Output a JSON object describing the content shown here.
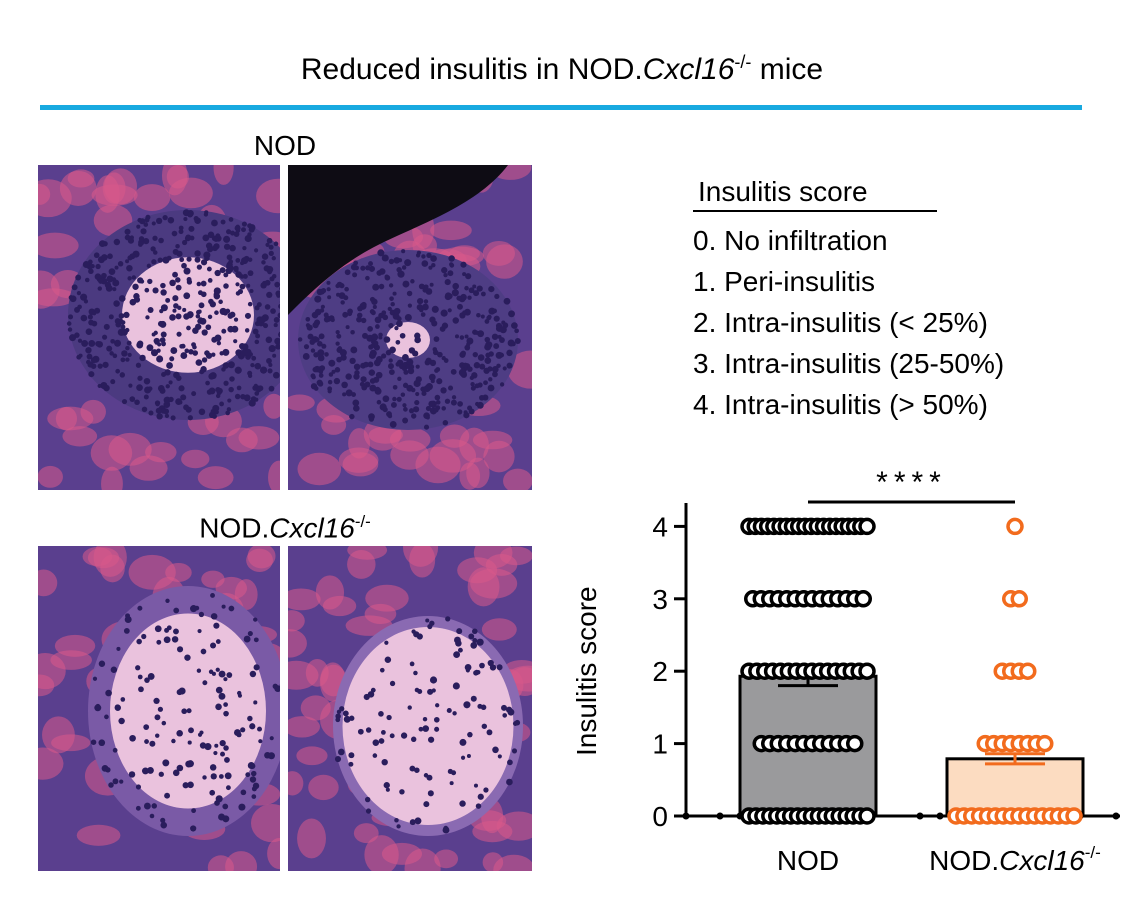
{
  "figure": {
    "title_prefix": "Reduced insulitis in NOD.",
    "title_italic": "Cxcl16",
    "title_sup": "-/-",
    "title_suffix": " mice",
    "accent_color": "#18a9e0"
  },
  "histology": {
    "nod_label": "NOD",
    "ko_label_prefix": "NOD.",
    "ko_label_italic": "Cxcl16",
    "ko_label_sup": "-/-",
    "stain_colors": {
      "tissue": "#5a3f8e",
      "cytoplasm_pink": "#d95a8a",
      "nuclei": "#2a1d5c",
      "islet": "#eac2dd"
    }
  },
  "legend": {
    "header": "Insulitis score",
    "items": [
      "0. No infiltration",
      "1. Peri-insulitis",
      "2. Intra-insulitis (< 25%)",
      "3. Intra-insulitis (25-50%)",
      "4. Intra-insulitis (> 50%)"
    ]
  },
  "chart_data": {
    "type": "bar",
    "ylabel": "Insulitis score",
    "ylim": [
      0,
      4.35
    ],
    "yticks": [
      0,
      1,
      2,
      3,
      4
    ],
    "categories": [
      "NOD",
      "NOD.Cxcl16-/-"
    ],
    "category_labels": [
      {
        "text": "NOD",
        "italic": "",
        "sup": ""
      },
      {
        "text": "NOD.",
        "italic": "Cxcl16",
        "sup": "-/-"
      }
    ],
    "series": [
      {
        "values": [
          1.93,
          0.79
        ],
        "sem": [
          0.13,
          0.07
        ]
      }
    ],
    "bar_colors": [
      "#9a9a9c",
      "#fcdcc1"
    ],
    "point_colors": [
      "#000000",
      "#f26b1d"
    ],
    "points": [
      {
        "group": "NOD",
        "score_counts": {
          "0": 18,
          "1": 12,
          "2": 16,
          "3": 14,
          "4": 20
        }
      },
      {
        "group": "NOD.Cxcl16-/-",
        "score_counts": {
          "0": 16,
          "1": 8,
          "2": 4,
          "3": 2,
          "4": 1
        }
      }
    ],
    "significance": "****"
  }
}
